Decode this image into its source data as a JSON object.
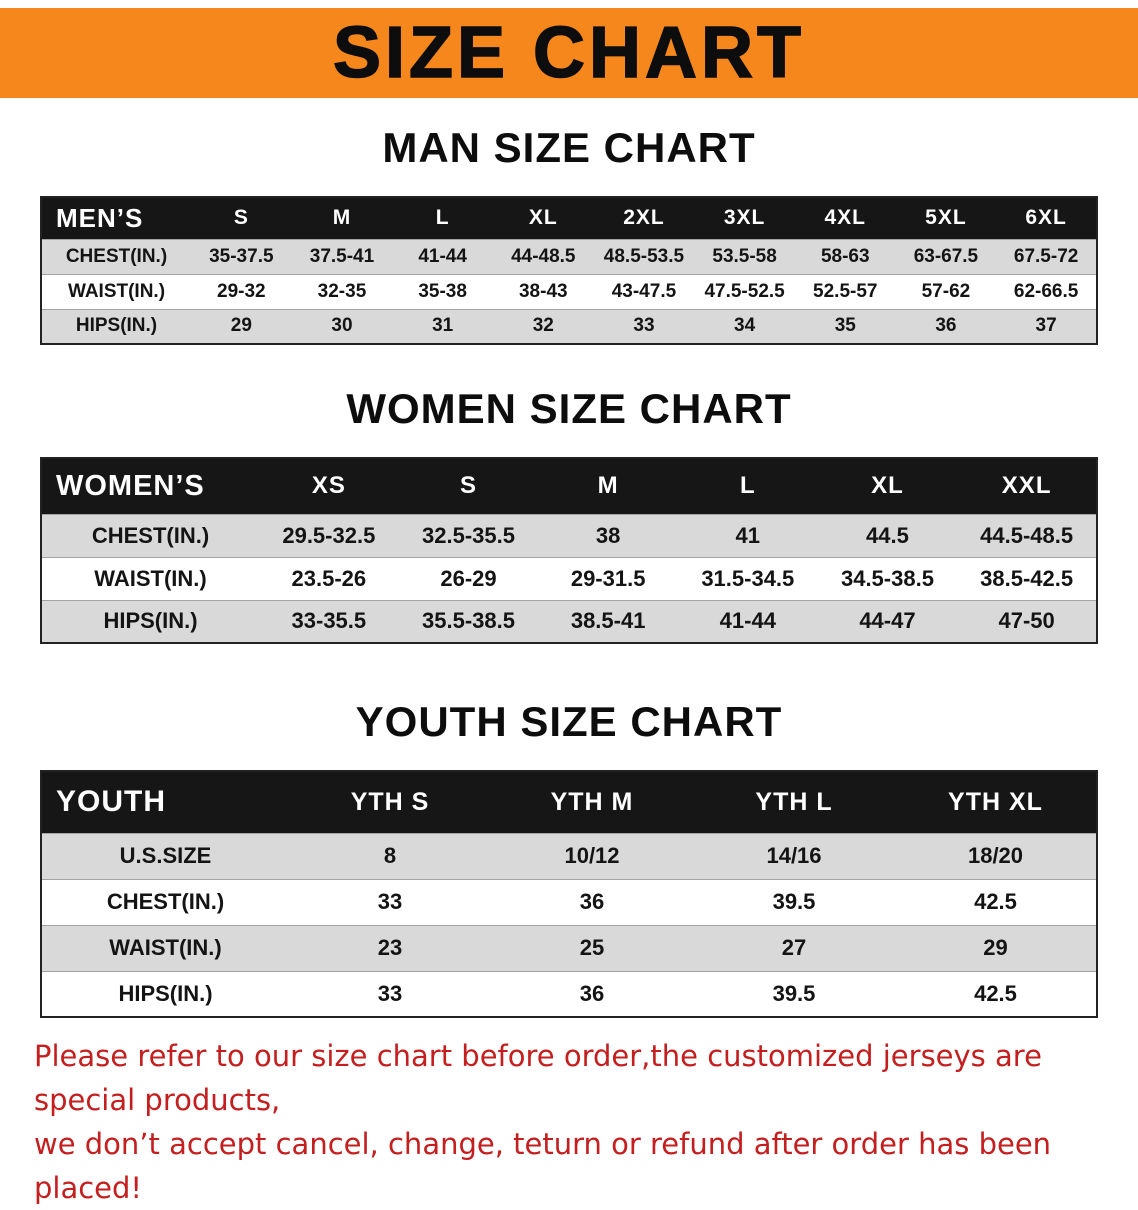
{
  "banner": {
    "title": "SIZE CHART"
  },
  "colors": {
    "banner-bg": "#f6871d",
    "table-header-bg": "#161616",
    "row-alt-bg": "#d9d9d9",
    "disclaimer-red": "#c41e1e"
  },
  "sections": {
    "men": {
      "heading": "MAN SIZE CHART",
      "table": {
        "header": [
          "MEN’S",
          "S",
          "M",
          "L",
          "XL",
          "2XL",
          "3XL",
          "4XL",
          "5XL",
          "6XL"
        ],
        "rows": [
          [
            "CHEST(IN.)",
            "35-37.5",
            "37.5-41",
            "41-44",
            "44-48.5",
            "48.5-53.5",
            "53.5-58",
            "58-63",
            "63-67.5",
            "67.5-72"
          ],
          [
            "WAIST(IN.)",
            "29-32",
            "32-35",
            "35-38",
            "38-43",
            "43-47.5",
            "47.5-52.5",
            "52.5-57",
            "57-62",
            "62-66.5"
          ],
          [
            "HIPS(IN.)",
            "29",
            "30",
            "31",
            "32",
            "33",
            "34",
            "35",
            "36",
            "37"
          ]
        ]
      }
    },
    "women": {
      "heading": "WOMEN SIZE CHART",
      "table": {
        "header": [
          "WOMEN’S",
          "XS",
          "S",
          "M",
          "L",
          "XL",
          "XXL"
        ],
        "rows": [
          [
            "CHEST(IN.)",
            "29.5-32.5",
            "32.5-35.5",
            "38",
            "41",
            "44.5",
            "44.5-48.5"
          ],
          [
            "WAIST(IN.)",
            "23.5-26",
            "26-29",
            "29-31.5",
            "31.5-34.5",
            "34.5-38.5",
            "38.5-42.5"
          ],
          [
            "HIPS(IN.)",
            "33-35.5",
            "35.5-38.5",
            "38.5-41",
            "41-44",
            "44-47",
            "47-50"
          ]
        ]
      }
    },
    "youth": {
      "heading": "YOUTH SIZE CHART",
      "table": {
        "header": [
          "YOUTH",
          "YTH S",
          "YTH M",
          "YTH L",
          "YTH XL"
        ],
        "rows": [
          [
            "U.S.SIZE",
            "8",
            "10/12",
            "14/16",
            "18/20"
          ],
          [
            "CHEST(IN.)",
            "33",
            "36",
            "39.5",
            "42.5"
          ],
          [
            "WAIST(IN.)",
            "23",
            "25",
            "27",
            "29"
          ],
          [
            "HIPS(IN.)",
            "33",
            "36",
            "39.5",
            "42.5"
          ]
        ]
      }
    }
  },
  "disclaimer": {
    "line1": "Please refer to our size chart before order,the customized jerseys are special products,",
    "line2": "we don’t accept cancel, change, teturn or refund after order has been placed!"
  }
}
